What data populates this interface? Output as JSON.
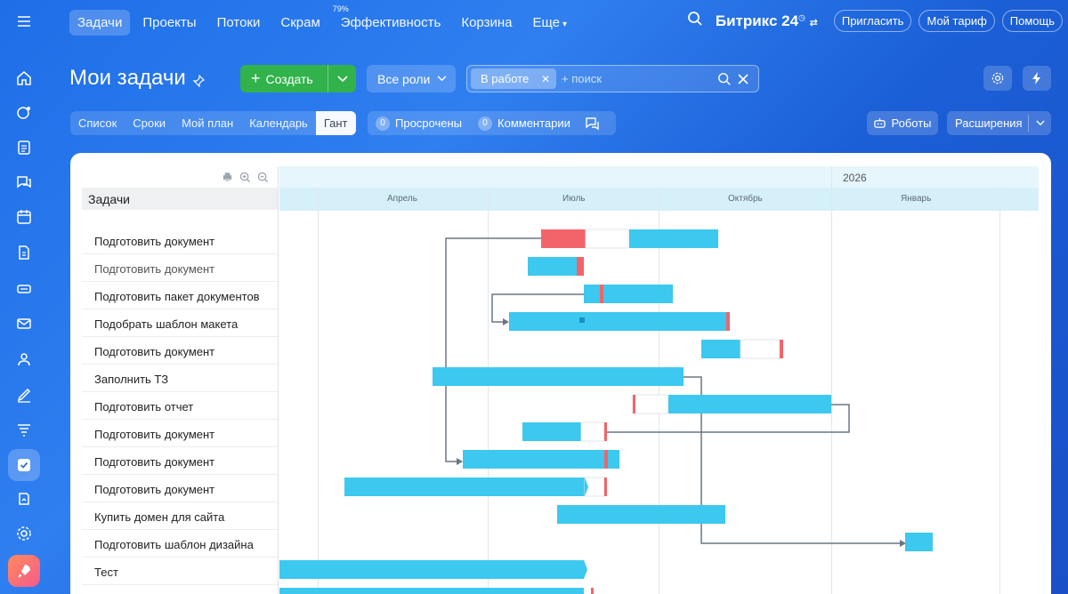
{
  "nav": {
    "items": [
      {
        "label": "Задачи",
        "active": true
      },
      {
        "label": "Проекты"
      },
      {
        "label": "Потоки"
      },
      {
        "label": "Скрам"
      },
      {
        "label": "Эффективность",
        "badge": "79%"
      },
      {
        "label": "Корзина"
      },
      {
        "label": "Еще"
      }
    ],
    "brand": "Битрикс 24",
    "invite": "Пригласить",
    "tariff": "Мой тариф",
    "help": "Помощь"
  },
  "header": {
    "title": "Мои задачи",
    "create": "Создать",
    "roles": "Все роли",
    "filter_chip": "В работе",
    "search_placeholder": "+ поиск"
  },
  "view_tabs": [
    "Список",
    "Сроки",
    "Мой план",
    "Календарь",
    "Гант"
  ],
  "active_view": "Гант",
  "counters": [
    {
      "count": "0",
      "label": "Просрочены"
    },
    {
      "count": "0",
      "label": "Комментарии"
    }
  ],
  "robots": "Роботы",
  "extensions": "Расширения",
  "gantt": {
    "tasks_header": "Задачи",
    "year": "2026",
    "months": [
      "Апрель",
      "Июль",
      "Октябрь",
      "Январь"
    ],
    "tasks": [
      {
        "name": "Подготовить документ"
      },
      {
        "name": "Подготовить документ",
        "muted": true
      },
      {
        "name": "Подготовить пакет документов"
      },
      {
        "name": "Подобрать шаблон макета"
      },
      {
        "name": "Подготовить документ"
      },
      {
        "name": "Заполнить ТЗ"
      },
      {
        "name": "Подготовить отчет"
      },
      {
        "name": "Подготовить документ"
      },
      {
        "name": "Подготовить документ"
      },
      {
        "name": "Подготовить документ"
      },
      {
        "name": "Купить домен для сайта"
      },
      {
        "name": "Подготовить шаблон дизайна"
      },
      {
        "name": "Тест"
      }
    ]
  },
  "colors": {
    "bar": "#3cc8ef",
    "overdue": "#f2646a",
    "create": "#31b24b"
  }
}
